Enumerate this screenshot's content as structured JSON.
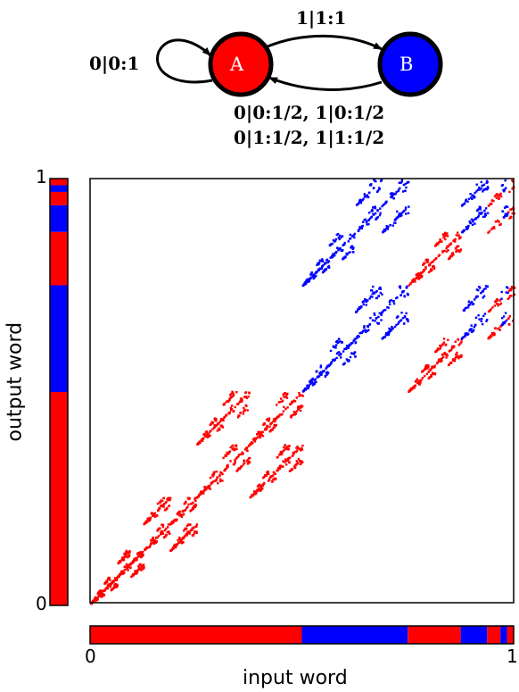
{
  "automaton": {
    "states": [
      {
        "name": "A",
        "color": "#ff0000"
      },
      {
        "name": "B",
        "color": "#0000ff"
      }
    ],
    "transitions": {
      "self_loop_A": "0|0:1",
      "A_to_B": "1|1:1",
      "B_to_A_line1": "0|0:1/2,  1|0:1/2",
      "B_to_A_line2": "0|1:1/2,  1|1:1/2"
    }
  },
  "plot": {
    "xlabel": "input word",
    "ylabel": "output word",
    "x_tick_min": "0",
    "x_tick_max": "1",
    "y_tick_min": "0",
    "y_tick_max": "1",
    "colors": {
      "A": "#ff0000",
      "B": "#0000ff"
    },
    "input_bar": [
      {
        "from": 0.0,
        "to": 0.5,
        "state": "A"
      },
      {
        "from": 0.5,
        "to": 0.75,
        "state": "B"
      },
      {
        "from": 0.75,
        "to": 0.875,
        "state": "A"
      },
      {
        "from": 0.875,
        "to": 0.9375,
        "state": "B"
      },
      {
        "from": 0.9375,
        "to": 0.96875,
        "state": "A"
      },
      {
        "from": 0.96875,
        "to": 0.984375,
        "state": "B"
      },
      {
        "from": 0.984375,
        "to": 1.0,
        "state": "A"
      }
    ],
    "output_bar": [
      {
        "from": 0.0,
        "to": 0.5,
        "state": "A"
      },
      {
        "from": 0.5,
        "to": 0.75,
        "state": "B"
      },
      {
        "from": 0.75,
        "to": 0.875,
        "state": "A"
      },
      {
        "from": 0.875,
        "to": 0.9375,
        "state": "B"
      },
      {
        "from": 0.9375,
        "to": 0.96875,
        "state": "A"
      },
      {
        "from": 0.96875,
        "to": 0.984375,
        "state": "B"
      },
      {
        "from": 0.984375,
        "to": 1.0,
        "state": "A"
      }
    ]
  }
}
